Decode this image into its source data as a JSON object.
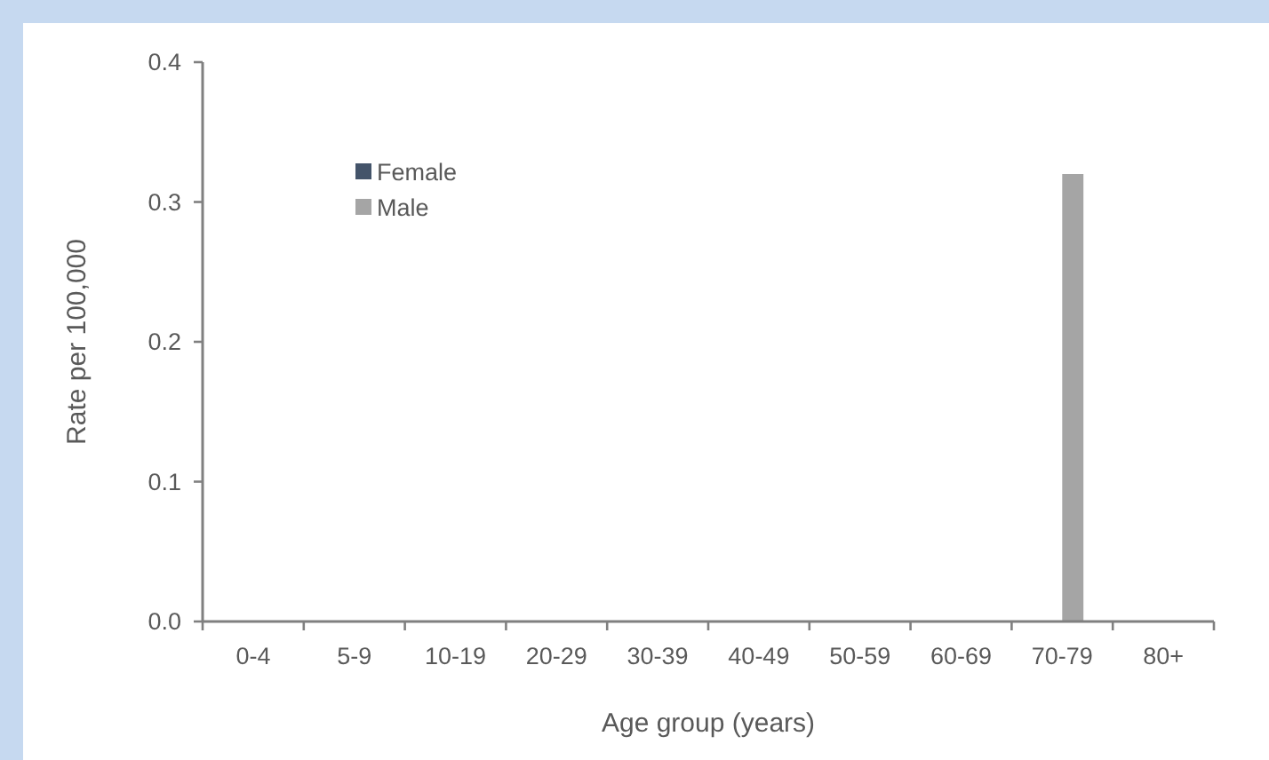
{
  "chart_data": {
    "type": "bar",
    "xlabel": "Age group (years)",
    "ylabel": "Rate per 100,000",
    "categories": [
      "0-4",
      "5-9",
      "10-19",
      "20-29",
      "30-39",
      "40-49",
      "50-59",
      "60-69",
      "70-79",
      "80+"
    ],
    "series": [
      {
        "name": "Female",
        "color": "#44546a",
        "values": [
          0,
          0,
          0,
          0,
          0,
          0,
          0,
          0,
          0,
          0
        ]
      },
      {
        "name": "Male",
        "color": "#a5a5a5",
        "values": [
          0,
          0,
          0,
          0,
          0,
          0,
          0,
          0,
          0.32,
          0
        ]
      }
    ],
    "ylim": [
      0,
      0.4
    ],
    "yticks": [
      {
        "value": 0,
        "label": "0.0"
      },
      0.1,
      0.2,
      0.3,
      0.4
    ],
    "legend": "top left"
  }
}
